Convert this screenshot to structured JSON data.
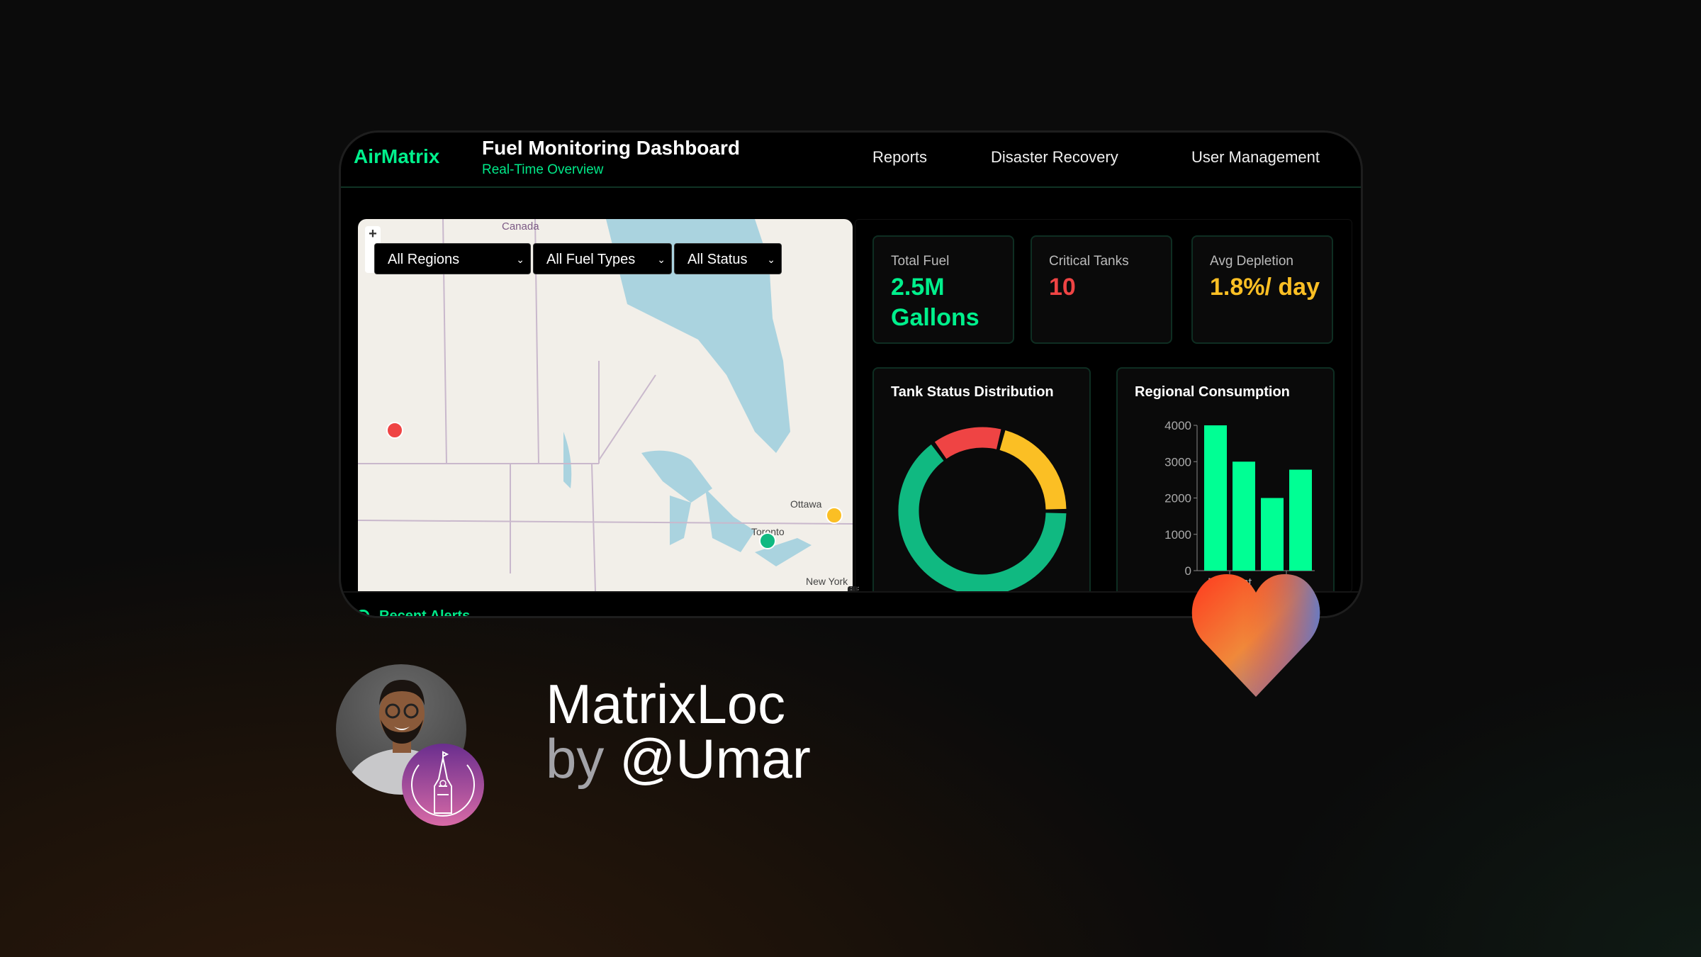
{
  "header": {
    "logo": "AirMatrix",
    "title": "Fuel Monitoring Dashboard",
    "subtitle": "Real-Time Overview",
    "nav": [
      {
        "label": "Reports"
      },
      {
        "label": "Disaster Recovery"
      },
      {
        "label": "User Management"
      }
    ]
  },
  "map": {
    "zoom_in_label": "+",
    "labels": {
      "country": "Canada",
      "city1": "Ottawa",
      "city2": "Toronto",
      "city3": "New York"
    },
    "filters": [
      {
        "value": "All Regions"
      },
      {
        "value": "All Fuel Types"
      },
      {
        "value": "All Status"
      }
    ],
    "markers": [
      {
        "color": "#ef4444"
      },
      {
        "color": "#10b981"
      },
      {
        "color": "#fbbf24"
      }
    ]
  },
  "stats": [
    {
      "label": "Total Fuel",
      "value": "2.5M Gallons",
      "color": "#00f08c"
    },
    {
      "label": "Critical Tanks",
      "value": "10",
      "color": "#ef4444"
    },
    {
      "label": "Avg Depletion",
      "value": "1.8%/ day",
      "color": "#fbbf24"
    }
  ],
  "chart_data": [
    {
      "type": "pie",
      "title": "Tank Status Distribution",
      "donut": true,
      "values": [
        65,
        14,
        21
      ],
      "colors": [
        "#10b981",
        "#ef4444",
        "#fbbf24"
      ]
    },
    {
      "type": "bar",
      "title": "Regional Consumption",
      "categories": [
        "",
        "Midwest",
        "",
        "West"
      ],
      "values": [
        4000,
        3000,
        2000,
        2780
      ],
      "yticks": [
        "0",
        "1000",
        "2000",
        "3000",
        "4000"
      ],
      "ylim": [
        0,
        4000
      ],
      "color": "#00ff94"
    }
  ],
  "footer": {
    "recent_alerts": "Recent Alerts"
  },
  "promo": {
    "name": "MatrixLoc",
    "by": "by",
    "author": "@Umar"
  }
}
